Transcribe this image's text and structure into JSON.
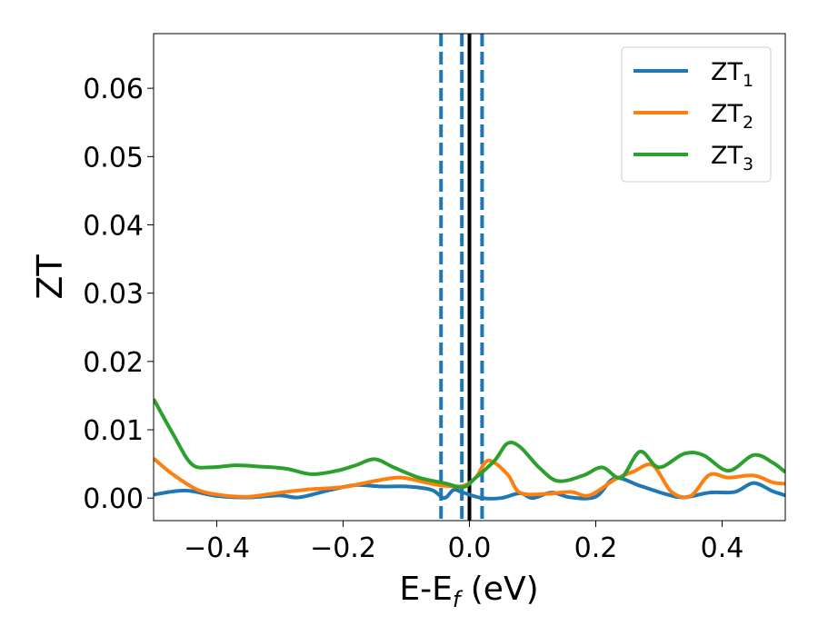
{
  "chart_data": {
    "type": "line",
    "title": "",
    "xlabel": "E-E",
    "xlabel_sub": "f",
    "xlabel_unit": " (eV)",
    "ylabel": "ZT",
    "xlim": [
      -0.5,
      0.5
    ],
    "ylim": [
      -0.0033,
      0.068
    ],
    "xticks": [
      -0.4,
      -0.2,
      0.0,
      0.2,
      0.4
    ],
    "xtick_labels": [
      "−0.4",
      "−0.2",
      "0.0",
      "0.2",
      "0.4"
    ],
    "yticks": [
      0.0,
      0.01,
      0.02,
      0.03,
      0.04,
      0.05,
      0.06
    ],
    "ytick_labels": [
      "0.00",
      "0.01",
      "0.02",
      "0.03",
      "0.04",
      "0.05",
      "0.06"
    ],
    "grid": false,
    "legend_position": "top-right",
    "vlines": [
      {
        "x": -0.045,
        "style": "dashed",
        "color": "#1f77b4"
      },
      {
        "x": -0.012,
        "style": "dashed",
        "color": "#1f77b4"
      },
      {
        "x": 0.0,
        "style": "solid",
        "color": "#000000"
      },
      {
        "x": 0.02,
        "style": "dashed",
        "color": "#1f77b4"
      }
    ],
    "series": [
      {
        "name": "ZT",
        "name_sub": "1",
        "color": "#1f77b4",
        "points": [
          [
            -0.5,
            0.0005
          ],
          [
            -0.45,
            0.0011
          ],
          [
            -0.4,
            0.0003
          ],
          [
            -0.35,
            0.0001
          ],
          [
            -0.3,
            0.0004
          ],
          [
            -0.27,
            0.0001
          ],
          [
            -0.22,
            0.0012
          ],
          [
            -0.18,
            0.0019
          ],
          [
            -0.14,
            0.0017
          ],
          [
            -0.1,
            0.0017
          ],
          [
            -0.06,
            0.0012
          ],
          [
            -0.04,
            0.0
          ],
          [
            -0.025,
            0.0012
          ],
          [
            -0.01,
            0.0008
          ],
          [
            0.02,
            0.0
          ],
          [
            0.05,
            0.0
          ],
          [
            0.08,
            0.0007
          ],
          [
            0.1,
            0.0
          ],
          [
            0.13,
            0.0008
          ],
          [
            0.16,
            0.0001
          ],
          [
            0.2,
            0.0002
          ],
          [
            0.23,
            0.0029
          ],
          [
            0.27,
            0.0018
          ],
          [
            0.31,
            0.0006
          ],
          [
            0.34,
            0.0001
          ],
          [
            0.38,
            0.0008
          ],
          [
            0.42,
            0.0009
          ],
          [
            0.45,
            0.0022
          ],
          [
            0.48,
            0.001
          ],
          [
            0.5,
            0.0004
          ]
        ]
      },
      {
        "name": "ZT",
        "name_sub": "2",
        "color": "#ff7f0e",
        "points": [
          [
            -0.5,
            0.0058
          ],
          [
            -0.47,
            0.0035
          ],
          [
            -0.43,
            0.0012
          ],
          [
            -0.39,
            0.0004
          ],
          [
            -0.35,
            0.0002
          ],
          [
            -0.3,
            0.0008
          ],
          [
            -0.25,
            0.0013
          ],
          [
            -0.2,
            0.0016
          ],
          [
            -0.15,
            0.0025
          ],
          [
            -0.11,
            0.003
          ],
          [
            -0.07,
            0.0023
          ],
          [
            -0.04,
            0.0018
          ],
          [
            -0.01,
            0.0018
          ],
          [
            0.01,
            0.003
          ],
          [
            0.03,
            0.0055
          ],
          [
            0.06,
            0.0035
          ],
          [
            0.08,
            0.0008
          ],
          [
            0.12,
            0.0006
          ],
          [
            0.16,
            0.0009
          ],
          [
            0.19,
            0.0004
          ],
          [
            0.23,
            0.0027
          ],
          [
            0.26,
            0.0039
          ],
          [
            0.29,
            0.0048
          ],
          [
            0.32,
            0.0009
          ],
          [
            0.35,
            0.0003
          ],
          [
            0.38,
            0.0034
          ],
          [
            0.41,
            0.003
          ],
          [
            0.45,
            0.0033
          ],
          [
            0.48,
            0.0023
          ],
          [
            0.5,
            0.0021
          ]
        ]
      },
      {
        "name": "ZT",
        "name_sub": "3",
        "color": "#2ca02c",
        "points": [
          [
            -0.5,
            0.0145
          ],
          [
            -0.47,
            0.0095
          ],
          [
            -0.44,
            0.005
          ],
          [
            -0.41,
            0.0045
          ],
          [
            -0.37,
            0.0048
          ],
          [
            -0.33,
            0.0046
          ],
          [
            -0.29,
            0.0043
          ],
          [
            -0.25,
            0.0035
          ],
          [
            -0.21,
            0.004
          ],
          [
            -0.18,
            0.0048
          ],
          [
            -0.15,
            0.0057
          ],
          [
            -0.12,
            0.0045
          ],
          [
            -0.08,
            0.003
          ],
          [
            -0.04,
            0.0022
          ],
          [
            -0.01,
            0.0016
          ],
          [
            0.01,
            0.003
          ],
          [
            0.04,
            0.0055
          ],
          [
            0.06,
            0.008
          ],
          [
            0.08,
            0.0075
          ],
          [
            0.11,
            0.0045
          ],
          [
            0.14,
            0.0025
          ],
          [
            0.18,
            0.0033
          ],
          [
            0.21,
            0.0045
          ],
          [
            0.24,
            0.003
          ],
          [
            0.27,
            0.0068
          ],
          [
            0.3,
            0.0045
          ],
          [
            0.34,
            0.0065
          ],
          [
            0.37,
            0.0063
          ],
          [
            0.41,
            0.004
          ],
          [
            0.45,
            0.0063
          ],
          [
            0.48,
            0.0052
          ],
          [
            0.5,
            0.0038
          ]
        ]
      }
    ]
  }
}
